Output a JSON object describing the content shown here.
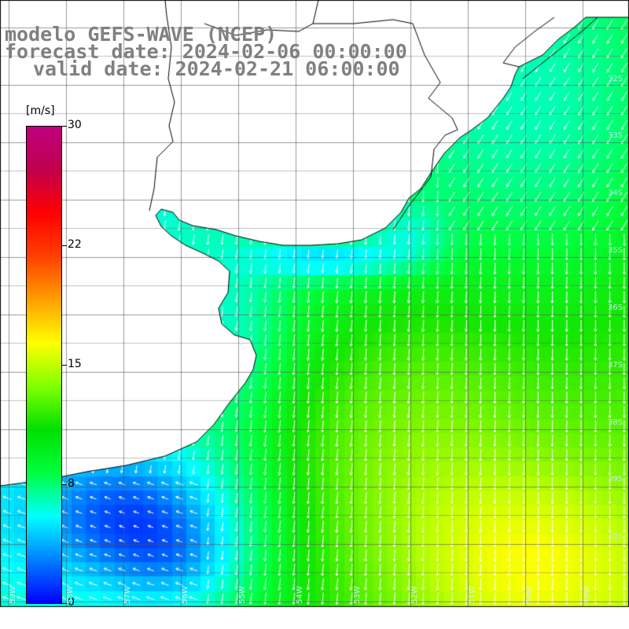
{
  "titles": {
    "line1": "modelo GEFS-WAVE (NCEP)",
    "line2": "forecast date: 2024-02-06 00:00:00",
    "line3": "valid date: 2024-02-21 06:00:00"
  },
  "colorbar": {
    "unit": "[m/s]",
    "ticks": [
      "30",
      "22",
      "15",
      "8",
      "0"
    ],
    "tick_values": [
      30,
      22,
      15,
      8,
      0
    ],
    "colors": [
      "#0000ff",
      "#0080ff",
      "#00ffff",
      "#00ff40",
      "#00e000",
      "#80ff00",
      "#ffff00",
      "#ffa000",
      "#ff4000",
      "#ff0000",
      "#c0004c",
      "#c0007f"
    ]
  },
  "map": {
    "lat_labels": [
      "32S",
      "33S",
      "34S",
      "35S",
      "36S",
      "37S",
      "38S",
      "39S",
      "40S"
    ],
    "lon_labels": [
      "59W",
      "58W",
      "57W",
      "56W",
      "55W",
      "54W",
      "53W",
      "52W",
      "51W",
      "50W",
      "49W"
    ],
    "land_color": "#ffffff",
    "coast_color": "#000000",
    "grid_color": "#555555",
    "arrow_color": "#ffffff"
  }
}
